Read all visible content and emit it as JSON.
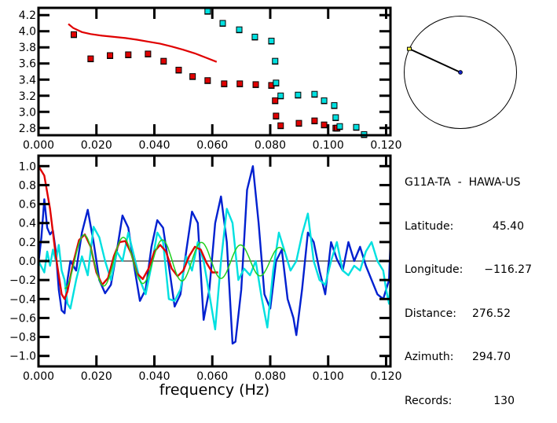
{
  "chart_data": [
    {
      "type": "scatter",
      "name": "dispersion",
      "title": "",
      "xlabel": "",
      "ylabel": "",
      "xlim": [
        0.0,
        0.1215
      ],
      "ylim": [
        2.71,
        4.29
      ],
      "xticks": [
        0.0,
        0.02,
        0.04,
        0.06,
        0.08,
        0.1,
        0.12
      ],
      "xtick_labels": [
        "0.000",
        "0.020",
        "0.040",
        "0.060",
        "0.080",
        "0.100",
        "0.120"
      ],
      "yticks": [
        4.2,
        4.0,
        3.8,
        3.6,
        3.4,
        3.2,
        3.0,
        2.8
      ],
      "ytick_labels": [
        "4.2",
        "4.0",
        "3.8",
        "3.6",
        "3.4",
        "3.2",
        "3.0",
        "2.8"
      ],
      "series": [
        {
          "name": "model curve",
          "kind": "line",
          "color": "#e00000",
          "x": [
            0.0103,
            0.012,
            0.015,
            0.018,
            0.022,
            0.026,
            0.03,
            0.034,
            0.038,
            0.042,
            0.046,
            0.05,
            0.054,
            0.058,
            0.0615
          ],
          "y": [
            4.09,
            4.04,
            3.99,
            3.965,
            3.945,
            3.93,
            3.915,
            3.895,
            3.87,
            3.845,
            3.81,
            3.77,
            3.725,
            3.67,
            3.62
          ]
        },
        {
          "name": "red measurements",
          "kind": "points",
          "color": "#e00000",
          "x": [
            0.0122,
            0.018,
            0.0247,
            0.031,
            0.0378,
            0.0432,
            0.0484,
            0.0532,
            0.0584,
            0.0641,
            0.0695,
            0.075,
            0.0804,
            0.0817,
            0.082,
            0.0836,
            0.0899,
            0.0953,
            0.0986,
            0.1026,
            0.1031
          ],
          "y": [
            3.96,
            3.66,
            3.7,
            3.71,
            3.72,
            3.63,
            3.52,
            3.44,
            3.39,
            3.35,
            3.35,
            3.34,
            3.33,
            3.14,
            2.95,
            2.83,
            2.86,
            2.89,
            2.84,
            2.8,
            2.8
          ]
        },
        {
          "name": "cyan measurements",
          "kind": "points",
          "color": "#00e0e0",
          "x": [
            0.0584,
            0.0636,
            0.0693,
            0.0747,
            0.0804,
            0.0817,
            0.082,
            0.0836,
            0.0896,
            0.0953,
            0.0986,
            0.1021,
            0.1026,
            0.104,
            0.1097,
            0.1124
          ],
          "y": [
            4.25,
            4.1,
            4.02,
            3.93,
            3.88,
            3.63,
            3.36,
            3.2,
            3.21,
            3.22,
            3.14,
            3.08,
            2.93,
            2.82,
            2.81,
            2.72
          ]
        }
      ]
    },
    {
      "type": "line",
      "name": "correlation",
      "title": "",
      "xlabel": "frequency (Hz)",
      "ylabel": "",
      "xlim": [
        0.0,
        0.1215
      ],
      "ylim": [
        -1.11,
        1.11
      ],
      "xticks": [
        0.0,
        0.02,
        0.04,
        0.06,
        0.08,
        0.1,
        0.12
      ],
      "xtick_labels": [
        "0.000",
        "0.020",
        "0.040",
        "0.060",
        "0.080",
        "0.100",
        "0.120"
      ],
      "yticks": [
        1.0,
        0.8,
        0.6,
        0.4,
        0.2,
        0.0,
        -0.2,
        -0.4,
        -0.6,
        -0.8,
        -1.0
      ],
      "ytick_labels": [
        "1.0",
        "0.8",
        "0.6",
        "0.4",
        "0.2",
        "0.0",
        "−0.2",
        "−0.4",
        "−0.6",
        "−0.8",
        "−1.0"
      ],
      "zero_line": true,
      "series": [
        {
          "name": "blue",
          "color": "#0020d0",
          "x": [
            0.0,
            0.001,
            0.002,
            0.003,
            0.004,
            0.005,
            0.006,
            0.007,
            0.008,
            0.009,
            0.01,
            0.011,
            0.013,
            0.015,
            0.017,
            0.019,
            0.021,
            0.023,
            0.025,
            0.027,
            0.029,
            0.031,
            0.033,
            0.035,
            0.037,
            0.039,
            0.041,
            0.043,
            0.045,
            0.047,
            0.049,
            0.051,
            0.053,
            0.055,
            0.057,
            0.059,
            0.061,
            0.063,
            0.065,
            0.067,
            0.068,
            0.07,
            0.072,
            0.074,
            0.076,
            0.078,
            0.08,
            0.082,
            0.084,
            0.086,
            0.088,
            0.089,
            0.091,
            0.093,
            0.095,
            0.097,
            0.099,
            0.101,
            0.103,
            0.105,
            0.107,
            0.109,
            0.111,
            0.113,
            0.115,
            0.117,
            0.119,
            0.121,
            0.1215
          ],
          "y": [
            -0.02,
            0.25,
            0.65,
            0.35,
            0.28,
            0.32,
            0.1,
            -0.3,
            -0.52,
            -0.55,
            -0.2,
            0.0,
            -0.1,
            0.3,
            0.54,
            0.2,
            -0.2,
            -0.34,
            -0.25,
            0.1,
            0.48,
            0.35,
            -0.05,
            -0.42,
            -0.3,
            0.15,
            0.43,
            0.35,
            -0.05,
            -0.48,
            -0.35,
            0.1,
            0.52,
            0.4,
            -0.62,
            -0.3,
            0.4,
            0.68,
            0.2,
            -0.87,
            -0.85,
            -0.3,
            0.75,
            1.0,
            0.4,
            -0.35,
            -0.5,
            0.0,
            0.12,
            -0.4,
            -0.6,
            -0.78,
            -0.3,
            0.3,
            0.2,
            -0.1,
            -0.35,
            0.2,
            0.02,
            -0.1,
            0.2,
            0.0,
            0.15,
            -0.05,
            -0.2,
            -0.35,
            -0.4,
            -0.2,
            0.2
          ]
        },
        {
          "name": "cyan",
          "color": "#00e0e0",
          "x": [
            0.0,
            0.002,
            0.003,
            0.004,
            0.005,
            0.006,
            0.007,
            0.008,
            0.009,
            0.01,
            0.011,
            0.013,
            0.015,
            0.017,
            0.019,
            0.021,
            0.023,
            0.025,
            0.027,
            0.029,
            0.031,
            0.033,
            0.035,
            0.037,
            0.039,
            0.041,
            0.043,
            0.045,
            0.047,
            0.049,
            0.051,
            0.053,
            0.055,
            0.057,
            0.059,
            0.061,
            0.063,
            0.065,
            0.067,
            0.069,
            0.071,
            0.073,
            0.075,
            0.077,
            0.079,
            0.081,
            0.083,
            0.085,
            0.087,
            0.089,
            0.091,
            0.093,
            0.095,
            0.097,
            0.099,
            0.101,
            0.103,
            0.105,
            0.107,
            0.109,
            0.111,
            0.113,
            0.115,
            0.117,
            0.119,
            0.12,
            0.121,
            0.1215
          ],
          "y": [
            0.0,
            -0.12,
            0.1,
            -0.05,
            0.12,
            0.0,
            0.17,
            -0.1,
            -0.2,
            -0.45,
            -0.5,
            -0.2,
            0.05,
            -0.15,
            0.36,
            0.25,
            0.0,
            -0.2,
            0.1,
            0.0,
            0.3,
            0.05,
            -0.2,
            -0.35,
            -0.05,
            0.3,
            0.2,
            -0.4,
            -0.42,
            -0.3,
            0.05,
            -0.1,
            0.2,
            0.0,
            -0.35,
            -0.72,
            0.0,
            0.55,
            0.4,
            -0.2,
            -0.08,
            -0.15,
            0.0,
            -0.38,
            -0.7,
            -0.1,
            0.3,
            0.1,
            -0.1,
            0.0,
            0.28,
            0.5,
            0.0,
            -0.2,
            -0.25,
            0.0,
            0.2,
            -0.1,
            -0.15,
            -0.05,
            -0.1,
            0.1,
            0.2,
            0.0,
            -0.1,
            -0.3,
            -0.45,
            -0.2
          ]
        },
        {
          "name": "red",
          "color": "#e00000",
          "x": [
            0.0,
            0.002,
            0.004,
            0.006,
            0.008,
            0.009,
            0.01,
            0.012,
            0.014,
            0.016,
            0.018,
            0.02,
            0.022,
            0.024,
            0.026,
            0.028,
            0.03,
            0.032,
            0.034,
            0.036,
            0.038,
            0.04,
            0.042,
            0.044,
            0.046,
            0.048,
            0.05,
            0.052,
            0.054,
            0.056,
            0.058,
            0.06,
            0.062
          ],
          "y": [
            1.0,
            0.9,
            0.55,
            0.05,
            -0.35,
            -0.4,
            -0.32,
            -0.02,
            0.22,
            0.28,
            0.15,
            -0.12,
            -0.25,
            -0.18,
            0.05,
            0.2,
            0.21,
            0.08,
            -0.13,
            -0.19,
            -0.08,
            0.1,
            0.17,
            0.1,
            -0.08,
            -0.16,
            -0.1,
            0.05,
            0.15,
            0.12,
            -0.02,
            -0.12,
            -0.12
          ]
        },
        {
          "name": "green",
          "color": "#20d020",
          "model": "damped cosine",
          "x_start": 0.009,
          "x_end": 0.085,
          "period": 0.0135,
          "phase_peak_at": 0.0158,
          "amplitude_start": 0.29,
          "amplitude_end": 0.14
        }
      ]
    }
  ],
  "azimuth_diagram": {
    "azimuth_deg": 294.7,
    "station_marker_color": "#ffff40",
    "center_marker_color": "#1020c0"
  },
  "station_info": {
    "title": "G11A-TA  -  HAWA-US",
    "rows": [
      {
        "label": "Latitude:",
        "value": "45.40"
      },
      {
        "label": "Longitude:",
        "value": "−116.27"
      },
      {
        "label": "Distance:",
        "value": "276.52"
      },
      {
        "label": "Azimuth:",
        "value": "294.70"
      },
      {
        "label": "Records:",
        "value": "130"
      }
    ]
  }
}
